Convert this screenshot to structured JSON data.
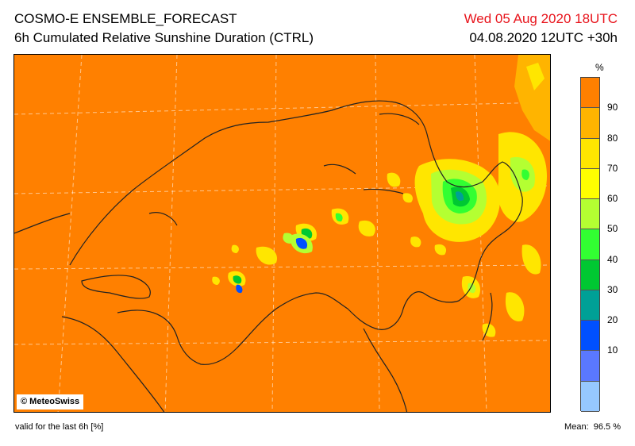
{
  "header": {
    "title": "COSMO-E ENSEMBLE_FORECAST",
    "subtitle": "6h Cumulated Relative Sunshine Duration (CTRL)",
    "valid_time": "Wed 05 Aug 2020 18UTC",
    "run_info": "04.08.2020 12UTC +30h"
  },
  "map": {
    "background_color": "#ff8000",
    "copyright": "© MeteoSwiss"
  },
  "legend": {
    "unit": "%",
    "labels": [
      "90",
      "80",
      "70",
      "60",
      "50",
      "40",
      "30",
      "20",
      "10"
    ],
    "colors": [
      "#ff8000",
      "#ffb400",
      "#ffe600",
      "#ffff00",
      "#b4ff32",
      "#32ff32",
      "#00c832",
      "#00a096",
      "#0050ff",
      "#5a78ff",
      "#96c8ff"
    ]
  },
  "footer": {
    "left": "valid for the last 6h [%]",
    "mean_label": "Mean:",
    "mean_value": "96.5 %"
  }
}
